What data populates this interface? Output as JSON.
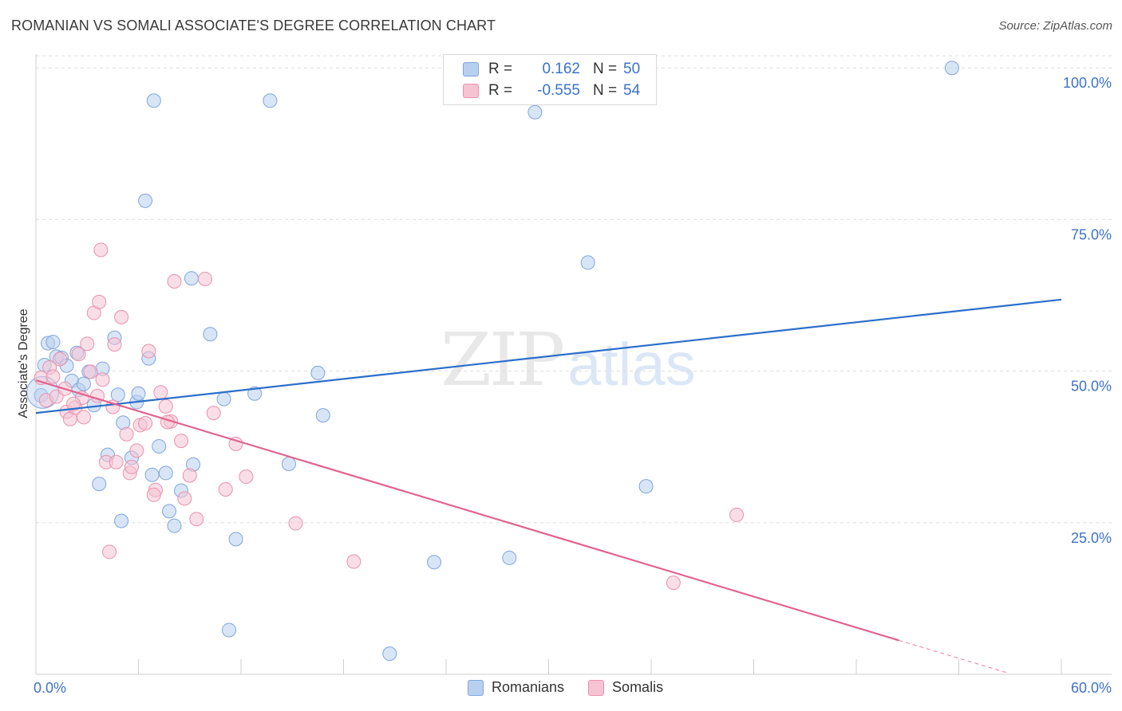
{
  "title": "ROMANIAN VS SOMALI ASSOCIATE'S DEGREE CORRELATION CHART",
  "source": "Source: ZipAtlas.com",
  "watermark": {
    "zip": "ZIP",
    "atlas": "atlas"
  },
  "legend": {
    "rows": [
      {
        "r_label": "R =",
        "r_value": "0.162",
        "n_label": "N =",
        "n_value": "50"
      },
      {
        "r_label": "R =",
        "r_value": "-0.555",
        "n_label": "N =",
        "n_value": "54"
      }
    ]
  },
  "bottom_legend": {
    "romanians": "Romanians",
    "somalis": "Somalis"
  },
  "colors": {
    "blue_fill": "#b8d0f0",
    "blue_stroke": "#7fa6dc",
    "blue_line": "#2c6fca",
    "pink_fill": "#f6c3d3",
    "pink_stroke": "#e892ad",
    "pink_line": "#e2648e",
    "axis_text": "#3f72c6",
    "grid": "#dddddd"
  },
  "chart_data": {
    "type": "scatter",
    "title": "ROMANIAN VS SOMALI ASSOCIATE'S DEGREE CORRELATION CHART",
    "xlabel": "",
    "ylabel": "Associate's Degree",
    "xlim": [
      0,
      60
    ],
    "ylim": [
      0,
      102
    ],
    "x_tick_labels": [
      "0.0%",
      "60.0%"
    ],
    "y_ticks": [
      25,
      50,
      75,
      100
    ],
    "y_tick_labels": [
      "25.0%",
      "50.0%",
      "75.0%",
      "100.0%"
    ],
    "series": [
      {
        "name": "Romanians",
        "r": 0.162,
        "n": 50,
        "trend": {
          "x0": 0,
          "y0": 43.1,
          "x1": 60,
          "y1": 61.8
        },
        "points": [
          [
            0.3,
            46.0
          ],
          [
            0.5,
            51.0
          ],
          [
            0.7,
            54.6
          ],
          [
            1.0,
            54.8
          ],
          [
            1.2,
            52.4
          ],
          [
            1.5,
            52.2
          ],
          [
            1.8,
            50.9
          ],
          [
            2.1,
            48.4
          ],
          [
            2.4,
            53.0
          ],
          [
            2.5,
            46.9
          ],
          [
            2.8,
            47.9
          ],
          [
            3.1,
            49.9
          ],
          [
            3.4,
            44.4
          ],
          [
            3.9,
            50.4
          ],
          [
            4.2,
            36.2
          ],
          [
            4.6,
            55.5
          ],
          [
            4.8,
            46.1
          ],
          [
            5.1,
            41.5
          ],
          [
            5.6,
            35.7
          ],
          [
            5.9,
            44.9
          ],
          [
            6.0,
            46.3
          ],
          [
            6.4,
            78.1
          ],
          [
            6.6,
            52.1
          ],
          [
            6.9,
            94.6
          ],
          [
            7.2,
            37.6
          ],
          [
            7.6,
            33.2
          ],
          [
            7.8,
            26.9
          ],
          [
            8.1,
            24.5
          ],
          [
            8.5,
            30.3
          ],
          [
            9.2,
            34.6
          ],
          [
            10.2,
            56.1
          ],
          [
            11.0,
            45.4
          ],
          [
            11.7,
            22.3
          ],
          [
            12.8,
            46.3
          ],
          [
            13.7,
            94.6
          ],
          [
            14.8,
            34.7
          ],
          [
            16.5,
            49.7
          ],
          [
            16.8,
            42.7
          ],
          [
            20.7,
            3.4
          ],
          [
            23.3,
            18.5
          ],
          [
            27.7,
            19.2
          ],
          [
            29.2,
            92.7
          ],
          [
            32.3,
            67.9
          ],
          [
            35.7,
            31.0
          ],
          [
            53.6,
            100.0
          ],
          [
            6.8,
            32.9
          ],
          [
            3.7,
            31.4
          ],
          [
            5.0,
            25.3
          ],
          [
            9.1,
            65.3
          ],
          [
            11.3,
            7.3
          ]
        ]
      },
      {
        "name": "Somalis",
        "r": -0.555,
        "n": 54,
        "trend": {
          "x0": 0,
          "y0": 48.5,
          "x1": 50.5,
          "y1": 5.6,
          "x1_dashed": 56.9,
          "y1_dashed": 0.2
        },
        "points": [
          [
            0.3,
            48.9
          ],
          [
            0.6,
            45.2
          ],
          [
            0.8,
            50.6
          ],
          [
            1.0,
            49.1
          ],
          [
            1.2,
            45.8
          ],
          [
            1.4,
            52.0
          ],
          [
            1.7,
            47.1
          ],
          [
            1.8,
            43.3
          ],
          [
            2.0,
            42.1
          ],
          [
            2.3,
            44.0
          ],
          [
            2.5,
            52.8
          ],
          [
            2.7,
            45.6
          ],
          [
            2.8,
            42.4
          ],
          [
            3.0,
            54.5
          ],
          [
            3.2,
            49.9
          ],
          [
            3.4,
            59.6
          ],
          [
            3.6,
            45.9
          ],
          [
            3.7,
            61.4
          ],
          [
            3.8,
            70.0
          ],
          [
            3.9,
            48.6
          ],
          [
            4.1,
            35.0
          ],
          [
            4.3,
            20.2
          ],
          [
            4.5,
            44.1
          ],
          [
            4.7,
            35.0
          ],
          [
            5.0,
            58.9
          ],
          [
            5.3,
            39.6
          ],
          [
            5.5,
            33.2
          ],
          [
            5.6,
            34.2
          ],
          [
            5.9,
            36.9
          ],
          [
            6.1,
            41.1
          ],
          [
            6.4,
            41.4
          ],
          [
            6.6,
            53.3
          ],
          [
            7.0,
            30.4
          ],
          [
            7.3,
            46.5
          ],
          [
            7.6,
            44.2
          ],
          [
            7.9,
            41.7
          ],
          [
            8.1,
            64.8
          ],
          [
            8.5,
            38.5
          ],
          [
            8.7,
            29.0
          ],
          [
            9.0,
            32.8
          ],
          [
            9.4,
            25.6
          ],
          [
            9.9,
            65.2
          ],
          [
            10.4,
            43.1
          ],
          [
            11.1,
            30.5
          ],
          [
            11.7,
            38.0
          ],
          [
            12.3,
            32.6
          ],
          [
            15.2,
            24.9
          ],
          [
            18.6,
            18.6
          ],
          [
            37.3,
            15.1
          ],
          [
            41.0,
            26.3
          ],
          [
            6.9,
            29.6
          ],
          [
            7.7,
            41.6
          ],
          [
            2.2,
            44.6
          ],
          [
            4.6,
            54.4
          ]
        ]
      }
    ]
  }
}
